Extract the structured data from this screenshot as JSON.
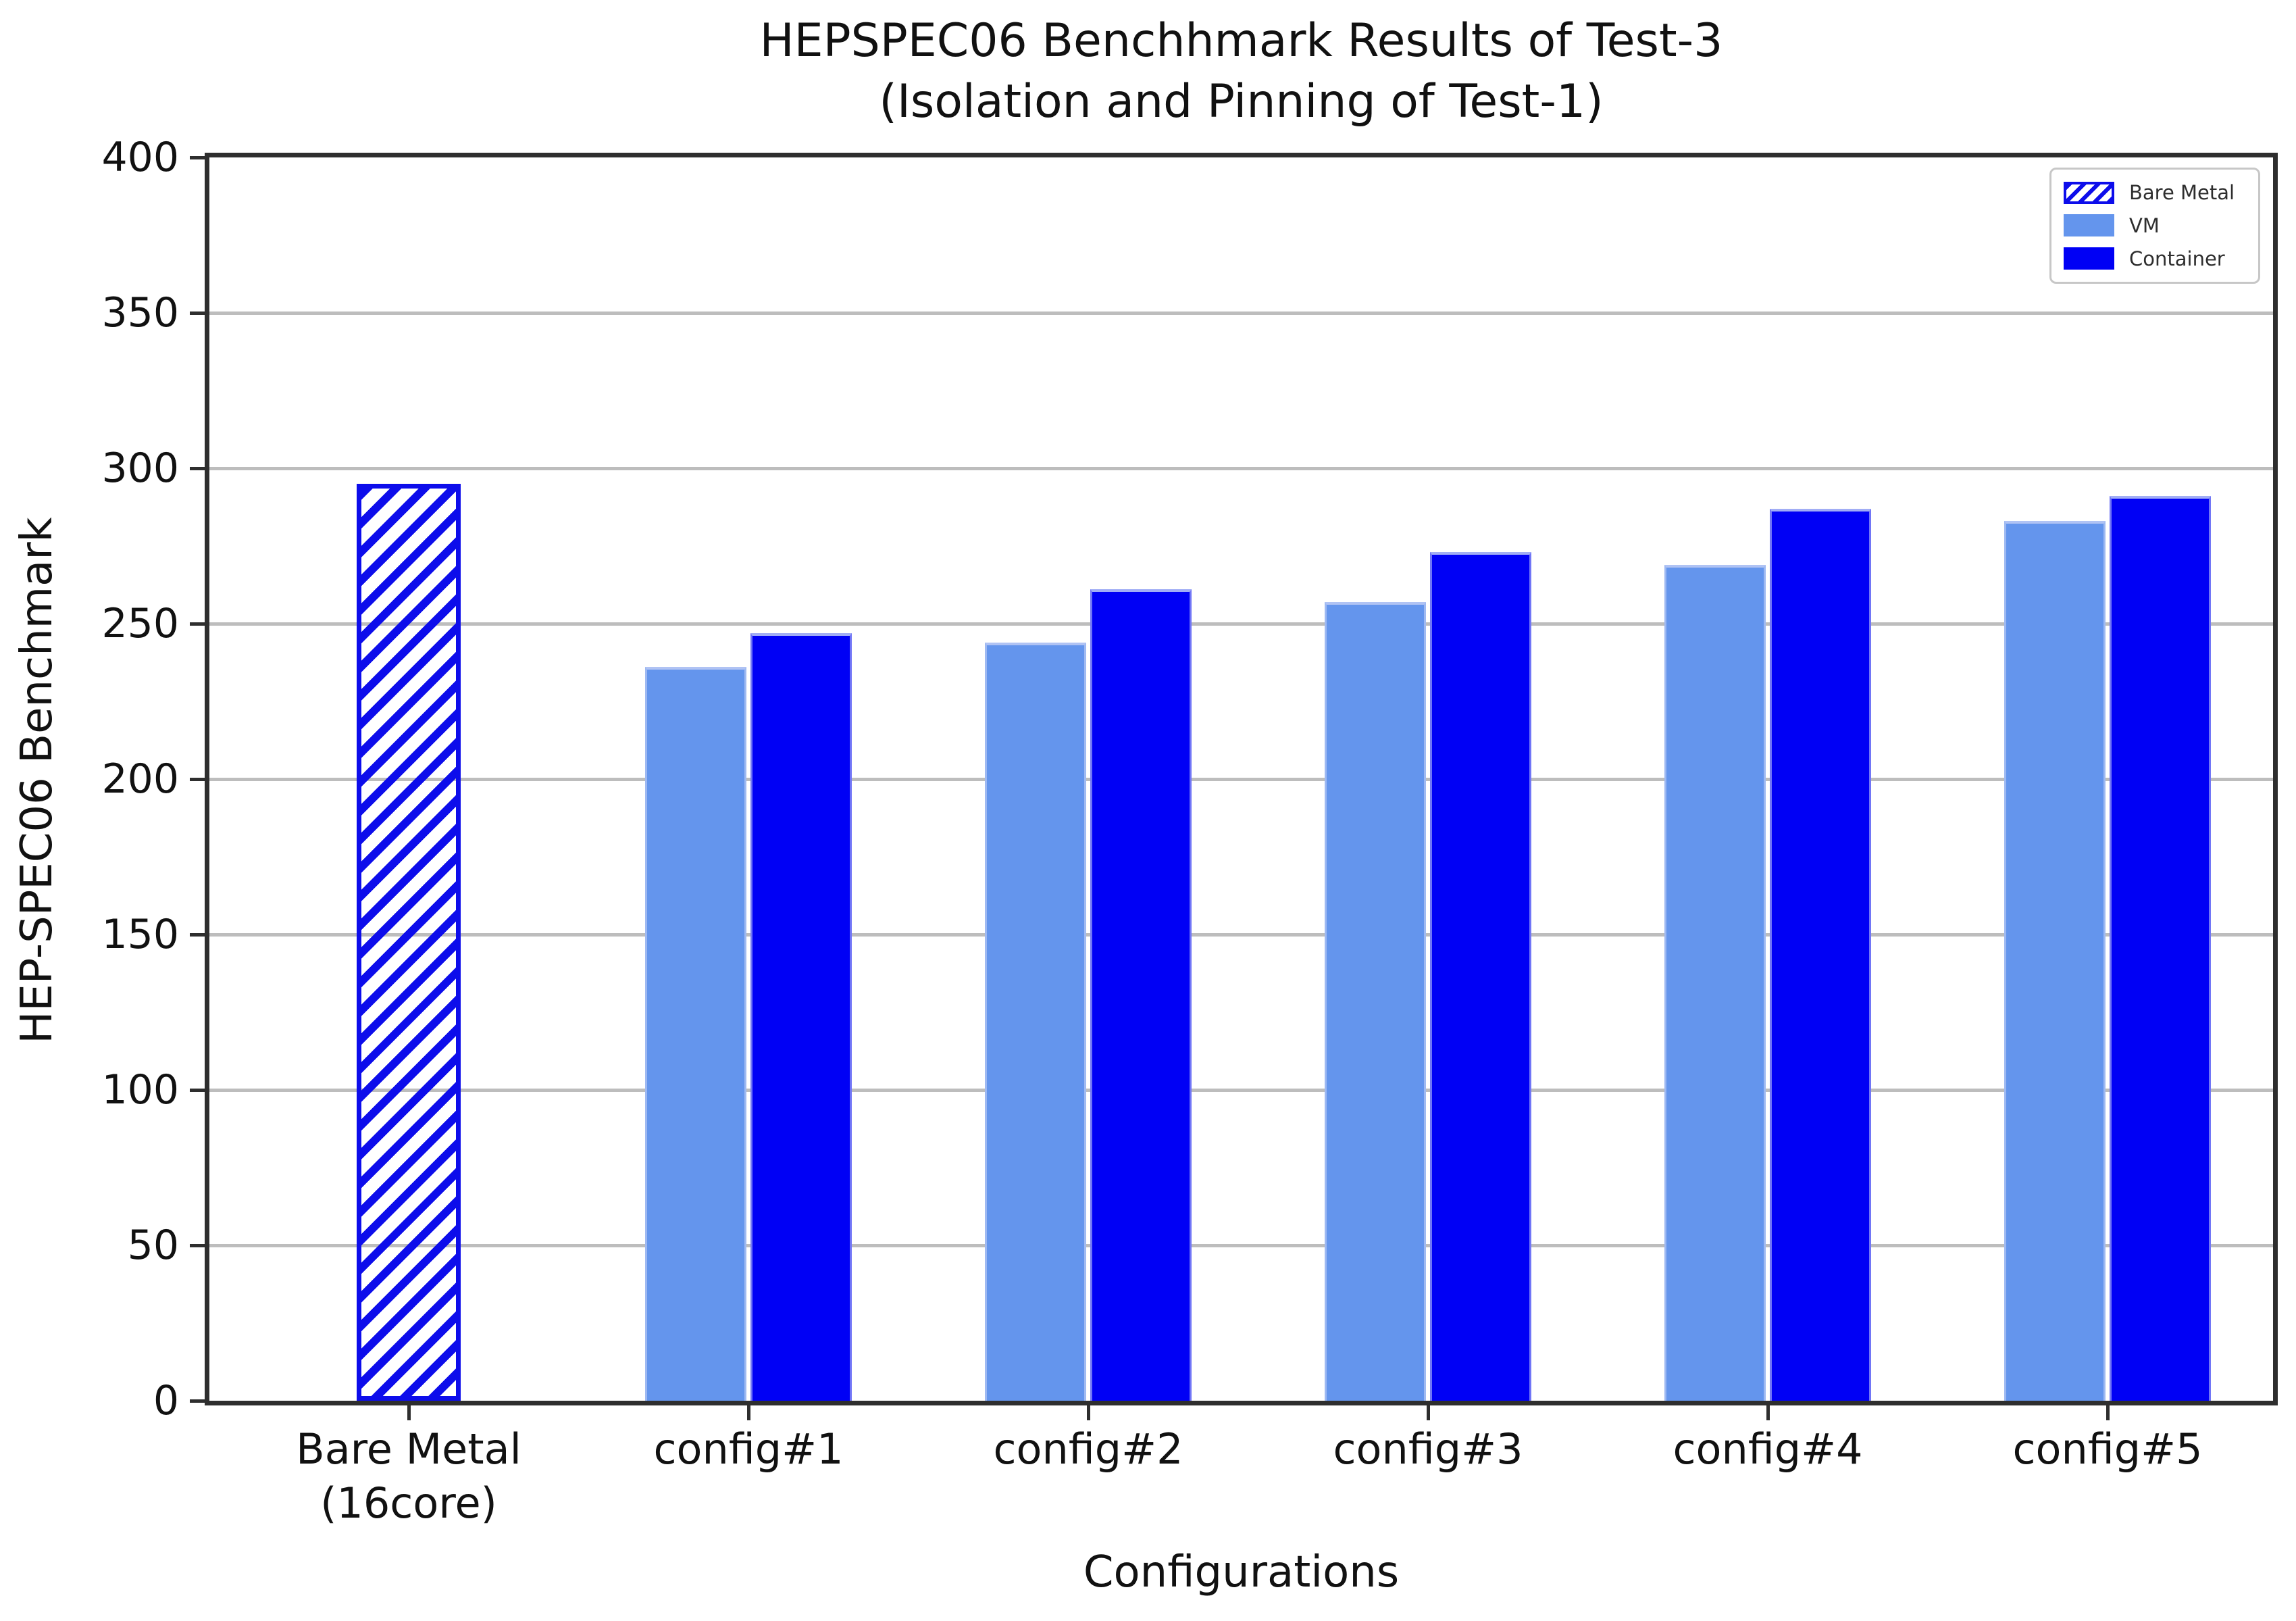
{
  "chart_data": {
    "type": "bar",
    "title": "HEPSPEC06 Benchhmark Results of Test-3\n(Isolation and Pinning of Test-1)",
    "xlabel": "Configurations",
    "ylabel": "HEP-SPEC06 Benchmark",
    "ylim": [
      0,
      400
    ],
    "yticks": [
      0,
      50,
      100,
      150,
      200,
      250,
      300,
      350,
      400
    ],
    "grid": true,
    "legend_position": "upper right",
    "categories": [
      "Bare Metal\n(16core)",
      "config#1",
      "config#2",
      "config#3",
      "config#4",
      "config#5"
    ],
    "series": [
      {
        "name": "Bare Metal",
        "pattern": "hatch-diagonal",
        "color": "#0d0deb",
        "values": [
          295,
          null,
          null,
          null,
          null,
          null
        ]
      },
      {
        "name": "VM",
        "pattern": "solid",
        "color": "#6495ed",
        "values": [
          null,
          236,
          244,
          257,
          269,
          283
        ]
      },
      {
        "name": "Container",
        "pattern": "solid",
        "color": "#0000f5",
        "values": [
          null,
          247,
          261,
          273,
          287,
          291
        ]
      }
    ],
    "colors": {
      "grid": "#bdbdbd",
      "spine": "#2e2e2e",
      "text": "#111111",
      "legend_border": "#c7c7c7",
      "background": "#ffffff"
    }
  }
}
